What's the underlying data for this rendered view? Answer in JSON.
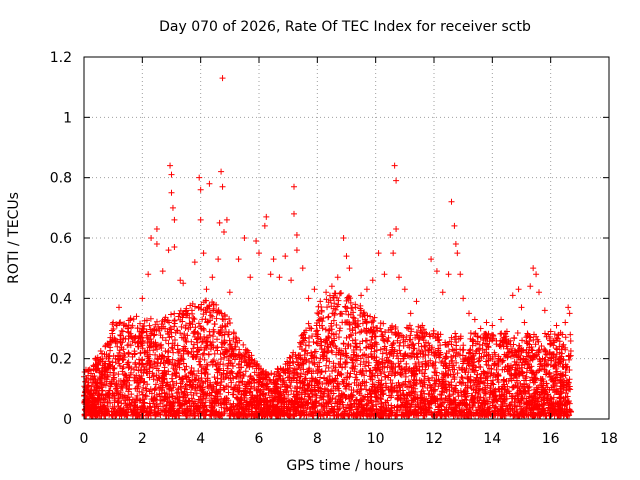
{
  "chart_data": {
    "type": "scatter",
    "title": "Day 070 of 2026, Rate Of TEC Index for receiver sctb",
    "xlabel": "GPS time / hours",
    "ylabel": "ROTI / TECUs",
    "xlim": [
      0,
      18
    ],
    "ylim": [
      0,
      1.2
    ],
    "xticks": [
      0,
      2,
      4,
      6,
      8,
      10,
      12,
      14,
      16,
      18
    ],
    "xtick_labels": [
      "0",
      "2",
      "4",
      "6",
      "8",
      "10",
      "12",
      "14",
      "16",
      "18"
    ],
    "yticks": [
      0,
      0.2,
      0.4,
      0.6,
      0.8,
      1.0,
      1.2
    ],
    "ytick_labels": [
      "0",
      "0.2",
      "0.4",
      "0.6",
      "0.8",
      "1",
      "1.2"
    ],
    "grid": true,
    "marker": "plus",
    "color": "#ff0000",
    "data_span_hours": [
      0,
      16.7
    ],
    "series": [
      {
        "name": "ROTI",
        "points": [
          [
            0.0,
            0.14
          ],
          [
            0.1,
            0.09
          ],
          [
            0.3,
            0.12
          ],
          [
            0.5,
            0.06
          ],
          [
            0.8,
            0.25
          ],
          [
            1.0,
            0.32
          ],
          [
            1.2,
            0.37
          ],
          [
            1.5,
            0.3
          ],
          [
            1.8,
            0.34
          ],
          [
            2.0,
            0.4
          ],
          [
            2.2,
            0.48
          ],
          [
            2.3,
            0.6
          ],
          [
            2.5,
            0.63
          ],
          [
            2.5,
            0.58
          ],
          [
            2.7,
            0.49
          ],
          [
            2.9,
            0.56
          ],
          [
            2.95,
            0.84
          ],
          [
            3.0,
            0.81
          ],
          [
            3.0,
            0.75
          ],
          [
            3.05,
            0.7
          ],
          [
            3.1,
            0.66
          ],
          [
            3.1,
            0.57
          ],
          [
            3.3,
            0.46
          ],
          [
            3.4,
            0.45
          ],
          [
            3.5,
            0.35
          ],
          [
            3.7,
            0.36
          ],
          [
            3.8,
            0.52
          ],
          [
            3.95,
            0.8
          ],
          [
            4.0,
            0.76
          ],
          [
            4.0,
            0.66
          ],
          [
            4.1,
            0.55
          ],
          [
            4.2,
            0.43
          ],
          [
            4.3,
            0.78
          ],
          [
            4.4,
            0.47
          ],
          [
            4.6,
            0.53
          ],
          [
            4.65,
            0.65
          ],
          [
            4.7,
            0.82
          ],
          [
            4.75,
            1.13
          ],
          [
            4.75,
            0.77
          ],
          [
            4.8,
            0.62
          ],
          [
            4.9,
            0.66
          ],
          [
            5.0,
            0.42
          ],
          [
            5.3,
            0.53
          ],
          [
            5.5,
            0.6
          ],
          [
            5.7,
            0.47
          ],
          [
            5.9,
            0.59
          ],
          [
            6.0,
            0.55
          ],
          [
            6.2,
            0.64
          ],
          [
            6.25,
            0.67
          ],
          [
            6.4,
            0.48
          ],
          [
            6.5,
            0.53
          ],
          [
            6.7,
            0.47
          ],
          [
            6.9,
            0.54
          ],
          [
            7.1,
            0.46
          ],
          [
            7.2,
            0.77
          ],
          [
            7.2,
            0.68
          ],
          [
            7.3,
            0.61
          ],
          [
            7.3,
            0.56
          ],
          [
            7.5,
            0.5
          ],
          [
            7.7,
            0.4
          ],
          [
            7.9,
            0.43
          ],
          [
            8.1,
            0.39
          ],
          [
            8.3,
            0.42
          ],
          [
            8.5,
            0.44
          ],
          [
            8.7,
            0.47
          ],
          [
            8.9,
            0.6
          ],
          [
            9.0,
            0.54
          ],
          [
            9.1,
            0.5
          ],
          [
            9.3,
            0.38
          ],
          [
            9.5,
            0.41
          ],
          [
            9.7,
            0.43
          ],
          [
            9.9,
            0.46
          ],
          [
            10.1,
            0.55
          ],
          [
            10.3,
            0.48
          ],
          [
            10.5,
            0.61
          ],
          [
            10.6,
            0.55
          ],
          [
            10.65,
            0.84
          ],
          [
            10.7,
            0.79
          ],
          [
            10.7,
            0.63
          ],
          [
            10.8,
            0.47
          ],
          [
            11.0,
            0.43
          ],
          [
            11.2,
            0.35
          ],
          [
            11.4,
            0.39
          ],
          [
            11.6,
            0.31
          ],
          [
            11.9,
            0.53
          ],
          [
            12.1,
            0.49
          ],
          [
            12.3,
            0.42
          ],
          [
            12.5,
            0.48
          ],
          [
            12.6,
            0.72
          ],
          [
            12.7,
            0.64
          ],
          [
            12.75,
            0.58
          ],
          [
            12.8,
            0.55
          ],
          [
            12.9,
            0.48
          ],
          [
            13.0,
            0.4
          ],
          [
            13.2,
            0.35
          ],
          [
            13.4,
            0.33
          ],
          [
            13.6,
            0.3
          ],
          [
            13.8,
            0.32
          ],
          [
            14.0,
            0.31
          ],
          [
            14.3,
            0.33
          ],
          [
            14.5,
            0.29
          ],
          [
            14.7,
            0.41
          ],
          [
            14.9,
            0.43
          ],
          [
            15.0,
            0.37
          ],
          [
            15.1,
            0.32
          ],
          [
            15.3,
            0.44
          ],
          [
            15.4,
            0.5
          ],
          [
            15.5,
            0.48
          ],
          [
            15.6,
            0.42
          ],
          [
            15.8,
            0.36
          ],
          [
            16.0,
            0.29
          ],
          [
            16.2,
            0.31
          ],
          [
            16.4,
            0.28
          ],
          [
            16.5,
            0.32
          ],
          [
            16.6,
            0.37
          ],
          [
            16.65,
            0.35
          ]
        ]
      }
    ]
  }
}
